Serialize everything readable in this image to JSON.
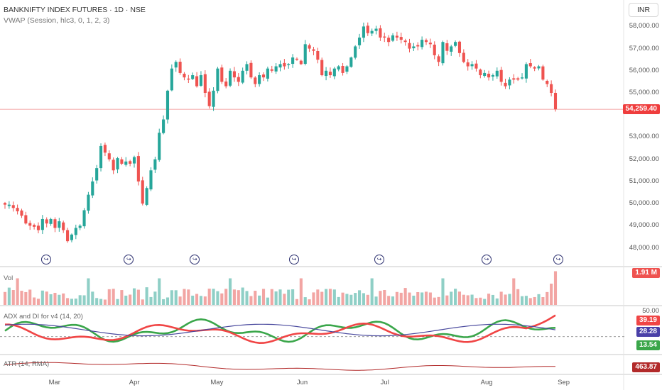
{
  "header": {
    "title": "BANKNIFTY INDEX FUTURES · 1D · NSE",
    "indicator": "VWAP (Session, hlc3, 0, 1, 2, 3)"
  },
  "currency_button": "INR",
  "colors": {
    "up": "#26a69a",
    "down": "#ef5350",
    "price_line": "#f08a8a",
    "adx": "#4a4a9e",
    "di_plus": "#3aa64a",
    "di_minus": "#f04545",
    "atr": "#b22a2a",
    "event_marker": "#2a2e6e"
  },
  "panels": {
    "vol_label": "Vol",
    "adx_label": "ADX and DI for v4 (14, 20)",
    "atr_label": "ATR (14, RMA)"
  },
  "badges": {
    "price": "54,259.40",
    "vol": "1.91 M",
    "di_minus": "39.19",
    "adx": "28.28",
    "di_plus": "13.54",
    "atr": "463.87",
    "adx_top": "50.00"
  },
  "event_icon": "dividend-event-icon",
  "chart_data": [
    {
      "type": "candlestick",
      "ylim": [
        47600,
        58300
      ],
      "yticks": [
        "58,000.00",
        "57,000.00",
        "56,000.00",
        "55,000.00",
        "53,000.00",
        "52,000.00",
        "51,000.00",
        "50,000.00",
        "49,000.00",
        "48,000.00"
      ],
      "yticks_values": [
        58000,
        57000,
        56000,
        55000,
        53000,
        52000,
        51000,
        50000,
        49000,
        48000
      ],
      "xticks": [
        "Mar",
        "Apr",
        "May",
        "Jun",
        "Jul",
        "Aug",
        "Sep"
      ],
      "last_price": 54259.4,
      "event_marker_count": 7,
      "close": [
        49950,
        49950,
        49800,
        49650,
        49450,
        49100,
        49000,
        48950,
        48800,
        49300,
        49100,
        49300,
        48900,
        49200,
        48800,
        48300,
        48600,
        48900,
        49000,
        49700,
        50400,
        51000,
        51600,
        52600,
        52300,
        52000,
        51500,
        52050,
        51800,
        51900,
        51800,
        52100,
        51000,
        50000,
        50700,
        51500,
        52000,
        53200,
        53800,
        55100,
        56100,
        56400,
        55900,
        55700,
        55600,
        55800,
        55300,
        55800,
        55000,
        54400,
        55100,
        56100,
        55500,
        55300,
        56000,
        55700,
        55500,
        56000,
        56300,
        55700,
        55400,
        55800,
        55700,
        56100,
        56000,
        56200,
        56300,
        56200,
        56300,
        56600,
        56500,
        56300,
        57200,
        57000,
        56900,
        56500,
        55800,
        56000,
        55800,
        56100,
        56200,
        55900,
        56200,
        56600,
        57100,
        57500,
        58000,
        57700,
        57800,
        57900,
        57500,
        57500,
        57300,
        57600,
        57500,
        57400,
        57300,
        57000,
        57100,
        57100,
        57400,
        57300,
        57200,
        56700,
        56400,
        57300,
        56900,
        57100,
        57300,
        56800,
        56400,
        56200,
        56300,
        56100,
        55800,
        55900,
        55700,
        55800,
        56000,
        55500,
        55300,
        55600,
        55600,
        55600,
        55700,
        56300,
        56200,
        56100,
        56200,
        55600,
        55400,
        55000,
        54259
      ]
    },
    {
      "type": "bar",
      "name": "Vol",
      "last_value": "1.91 M"
    },
    {
      "type": "line",
      "name": "ADX and DI for v4 (14, 20)",
      "ylim": [
        0,
        55
      ],
      "ytick": "50.00",
      "threshold": 20
    },
    {
      "type": "line",
      "name": "ATR (14, RMA)",
      "last_value": 463.87
    }
  ]
}
